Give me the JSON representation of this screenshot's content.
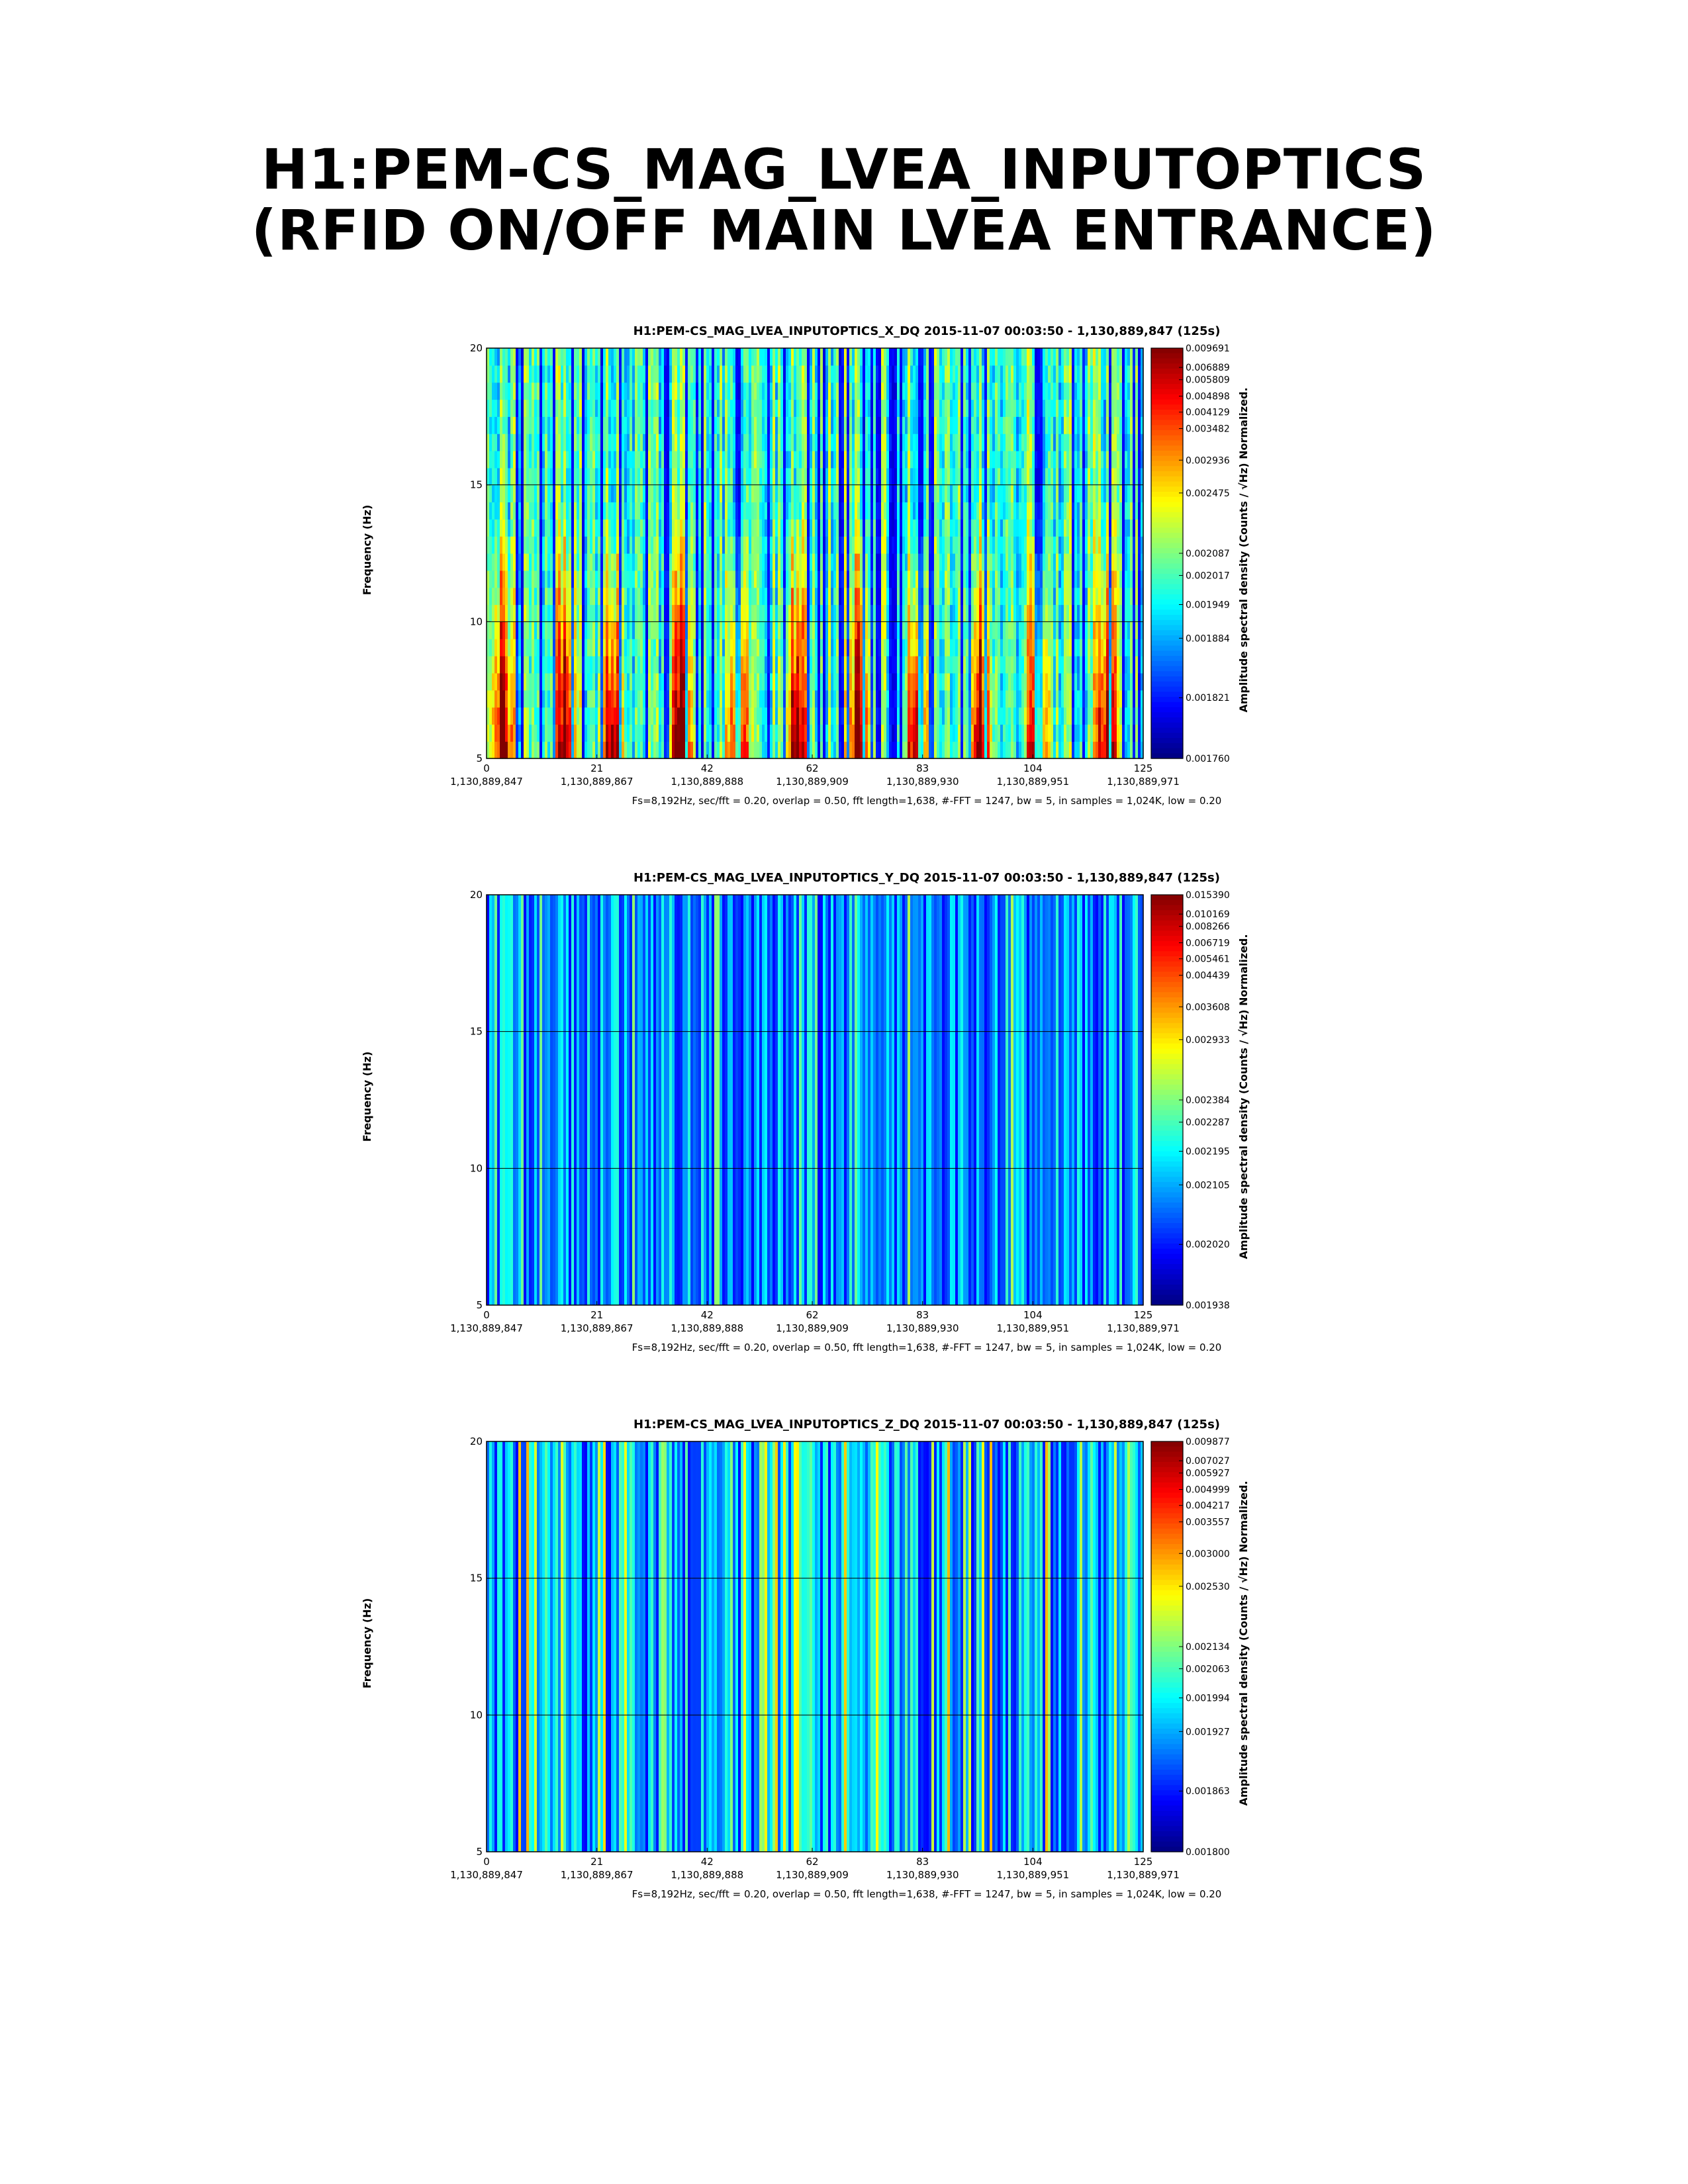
{
  "page": {
    "title_line1": "H1:PEM-CS_MAG_LVEA_INPUTOPTICS",
    "title_line2": "(RFID ON/OFF MAIN LVEA ENTRANCE)"
  },
  "chart_data": [
    {
      "type": "heatmap",
      "title": "H1:PEM-CS_MAG_LVEA_INPUTOPTICS_X_DQ 2015-11-07 00:03:50 - 1,130,889,847 (125s)",
      "ylabel": "Frequency (Hz)",
      "colorbar_label": "Amplitude spectral density (Counts / √Hz) Normalized.",
      "xticks": [
        0,
        21,
        42,
        62,
        83,
        104,
        125
      ],
      "xtick_gps": [
        "1,130,889,847",
        "1,130,889,867",
        "1,130,889,888",
        "1,130,889,909",
        "1,130,889,930",
        "1,130,889,951",
        "1,130,889,971"
      ],
      "xlim": [
        0,
        125
      ],
      "yticks": [
        5,
        10,
        15,
        20
      ],
      "ylim": [
        5,
        20
      ],
      "grid": true,
      "colorbar_ticks": [
        "0.009691",
        "0.006889",
        "0.005809",
        "0.004898",
        "0.004129",
        "0.003482",
        "0.002936",
        "0.002475",
        "0.002087",
        "0.002017",
        "0.001949",
        "0.001884",
        "0.001821",
        "0.001760"
      ],
      "pattern": "rfid-bursts",
      "footnote": "Fs=8,192Hz, sec/fft = 0.20, overlap = 0.50, fft length=1,638, #-FFT = 1247, bw = 5, in samples = 1,024K, low = 0.20"
    },
    {
      "type": "heatmap",
      "title": "H1:PEM-CS_MAG_LVEA_INPUTOPTICS_Y_DQ 2015-11-07 00:03:50 - 1,130,889,847 (125s)",
      "ylabel": "Frequency (Hz)",
      "colorbar_label": "Amplitude spectral density (Counts / √Hz) Normalized.",
      "xticks": [
        0,
        21,
        42,
        62,
        83,
        104,
        125
      ],
      "xtick_gps": [
        "1,130,889,847",
        "1,130,889,867",
        "1,130,889,888",
        "1,130,889,909",
        "1,130,889,930",
        "1,130,889,951",
        "1,130,889,971"
      ],
      "xlim": [
        0,
        125
      ],
      "yticks": [
        5,
        10,
        15,
        20
      ],
      "ylim": [
        5,
        20
      ],
      "grid": true,
      "colorbar_ticks": [
        "0.015390",
        "0.010169",
        "0.008266",
        "0.006719",
        "0.005461",
        "0.004439",
        "0.003608",
        "0.002933",
        "0.002384",
        "0.002287",
        "0.002195",
        "0.002105",
        "0.002020",
        "0.001938"
      ],
      "pattern": "low-noise",
      "footnote": "Fs=8,192Hz, sec/fft = 0.20, overlap = 0.50, fft length=1,638, #-FFT = 1247, bw = 5, in samples = 1,024K, low = 0.20"
    },
    {
      "type": "heatmap",
      "title": "H1:PEM-CS_MAG_LVEA_INPUTOPTICS_Z_DQ 2015-11-07 00:03:50 - 1,130,889,847 (125s)",
      "ylabel": "Frequency (Hz)",
      "colorbar_label": "Amplitude spectral density (Counts / √Hz) Normalized.",
      "xticks": [
        0,
        21,
        42,
        62,
        83,
        104,
        125
      ],
      "xtick_gps": [
        "1,130,889,847",
        "1,130,889,867",
        "1,130,889,888",
        "1,130,889,909",
        "1,130,889,930",
        "1,130,889,951",
        "1,130,889,971"
      ],
      "xlim": [
        0,
        125
      ],
      "yticks": [
        5,
        10,
        15,
        20
      ],
      "ylim": [
        5,
        20
      ],
      "grid": true,
      "colorbar_ticks": [
        "0.009877",
        "0.007027",
        "0.005927",
        "0.004999",
        "0.004217",
        "0.003557",
        "0.003000",
        "0.002530",
        "0.002134",
        "0.002063",
        "0.001994",
        "0.001927",
        "0.001863",
        "0.001800"
      ],
      "pattern": "mixed-noise",
      "footnote": "Fs=8,192Hz, sec/fft = 0.20, overlap = 0.50, fft length=1,638, #-FFT = 1247, bw = 5, in samples = 1,024K, low = 0.20"
    }
  ]
}
